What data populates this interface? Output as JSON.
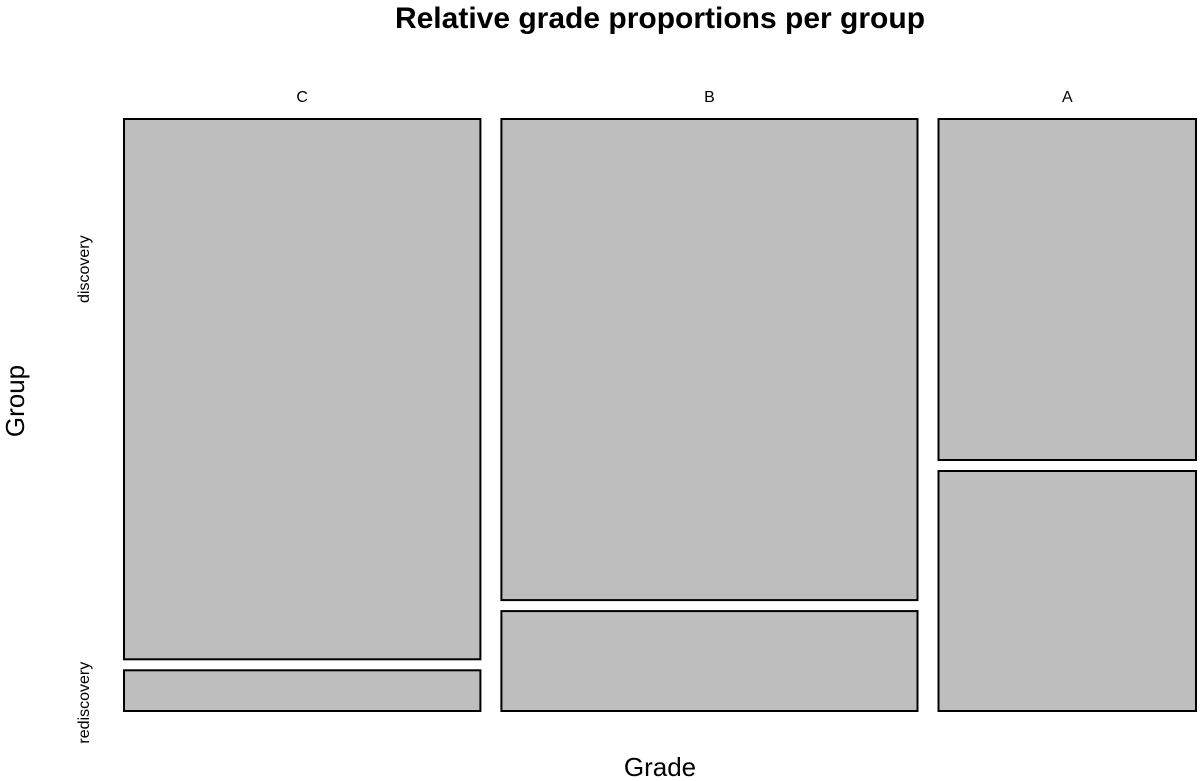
{
  "chart_data": {
    "type": "mosaic",
    "title": "Relative grade proportions per group",
    "xlabel": "Grade",
    "ylabel": "Group",
    "x_categories": [
      "C",
      "B",
      "A"
    ],
    "y_categories": [
      "discovery",
      "rediscovery"
    ],
    "column_proportions": [
      0.346,
      0.404,
      0.25
    ],
    "within_column_proportions": [
      {
        "category": "C",
        "discovery": 0.93,
        "rediscovery": 0.07
      },
      {
        "category": "B",
        "discovery": 0.828,
        "rediscovery": 0.172
      },
      {
        "category": "A",
        "discovery": 0.587,
        "rediscovery": 0.413
      }
    ],
    "fill_color": "#bebebe",
    "border_color": "#000000",
    "grid": false,
    "legend": "none"
  }
}
